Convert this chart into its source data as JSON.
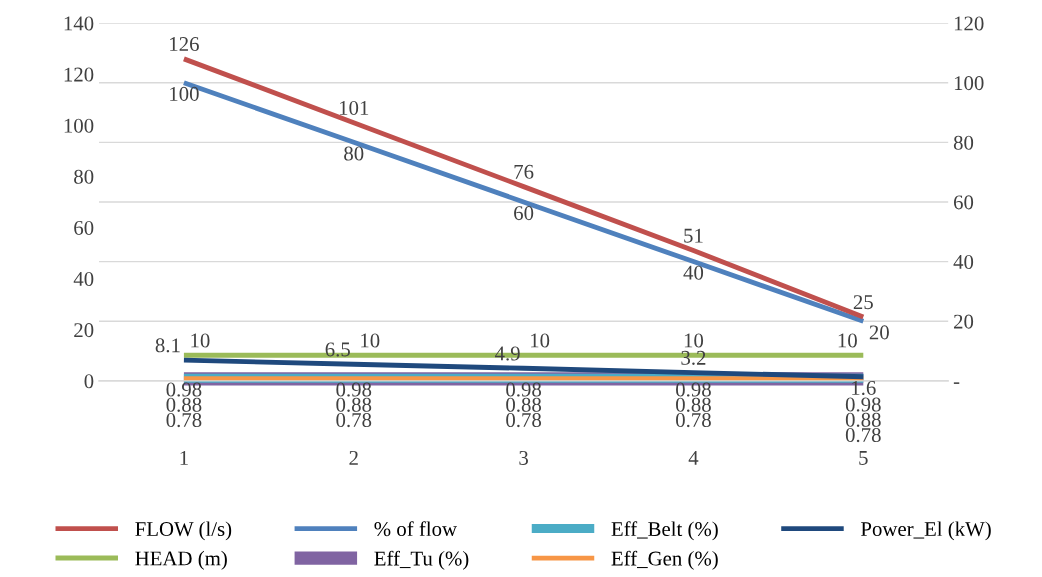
{
  "chart_data": {
    "type": "line",
    "categories": [
      "1",
      "2",
      "3",
      "4",
      "5"
    ],
    "series": [
      {
        "name": "FLOW (l/s)",
        "color": "#c0504d",
        "values": [
          126,
          101,
          76,
          51,
          25
        ]
      },
      {
        "name": "HEAD (m)",
        "color": "#9bbb59",
        "values": [
          10,
          10,
          10,
          10,
          10
        ]
      },
      {
        "name": "% of flow",
        "color": "#4f81bd",
        "values": [
          100,
          80,
          60,
          40,
          20
        ],
        "axis": "y2"
      },
      {
        "name": "Eff_Tu (%)",
        "color": "#8064a2",
        "values": [
          0.78,
          0.78,
          0.78,
          0.78,
          0.78
        ]
      },
      {
        "name": "Eff_Belt (%)",
        "color": "#4bacc6",
        "values": [
          0.98,
          0.98,
          0.98,
          0.98,
          0.98
        ]
      },
      {
        "name": "Eff_Gen (%)",
        "color": "#f79646",
        "values": [
          0.88,
          0.88,
          0.88,
          0.88,
          0.88
        ]
      },
      {
        "name": "Power_El (kW)",
        "color": "#1f497d",
        "values": [
          8.1,
          6.5,
          4.9,
          3.2,
          1.6
        ]
      }
    ],
    "ylim": [
      0,
      140
    ],
    "yticks": [
      0,
      20,
      40,
      60,
      80,
      100,
      120,
      140
    ],
    "y2lim": [
      0,
      120
    ],
    "y2ticks": [
      {
        "value": 0,
        "label": "-"
      },
      20,
      40,
      60,
      80,
      100,
      120
    ],
    "grid": "y",
    "legend": "bottom",
    "data_labels": true,
    "marker": "none",
    "line_style": "solid"
  }
}
